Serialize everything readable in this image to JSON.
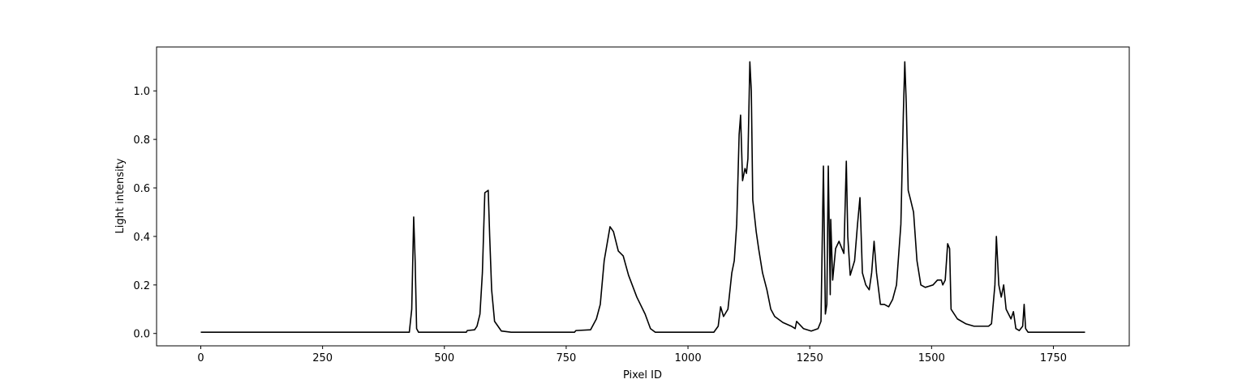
{
  "chart_data": {
    "type": "line",
    "x_label": "Pixel ID",
    "y_label": "Light intensity",
    "xlim": [
      -90.75,
      1905.75
    ],
    "ylim": [
      -0.051,
      1.181
    ],
    "xticks": [
      0,
      250,
      500,
      750,
      1000,
      1250,
      1500,
      1750
    ],
    "yticks": [
      {
        "value": 0,
        "label": "0.0"
      },
      {
        "value": 0.2,
        "label": "0.2"
      },
      {
        "value": 0.4,
        "label": "0.4"
      },
      {
        "value": 0.6,
        "label": "0.6"
      },
      {
        "value": 0.8,
        "label": "0.8"
      },
      {
        "value": 1.0,
        "label": "1.0"
      }
    ],
    "series": [
      {
        "color": "#000000",
        "x": [
          0,
          428,
          433,
          437,
          440,
          443,
          447,
          545,
          547,
          562,
          567,
          573,
          578,
          583,
          590,
          593,
          597,
          603,
          610,
          617,
          637,
          767,
          770,
          800,
          812,
          820,
          828,
          840,
          847,
          857,
          867,
          878,
          895,
          912,
          923,
          933,
          1053,
          1062,
          1067,
          1073,
          1082,
          1090,
          1095,
          1100,
          1105,
          1108,
          1112,
          1117,
          1120,
          1123,
          1127,
          1130,
          1133,
          1140,
          1145,
          1153,
          1162,
          1170,
          1178,
          1195,
          1212,
          1220,
          1223,
          1237,
          1253,
          1267,
          1273,
          1278,
          1282,
          1285,
          1288,
          1292,
          1293,
          1297,
          1303,
          1310,
          1320,
          1325,
          1328,
          1333,
          1342,
          1348,
          1353,
          1358,
          1365,
          1372,
          1377,
          1382,
          1387,
          1395,
          1403,
          1412,
          1420,
          1428,
          1437,
          1442,
          1445,
          1448,
          1452,
          1457,
          1463,
          1470,
          1478,
          1487,
          1503,
          1512,
          1520,
          1523,
          1528,
          1533,
          1537,
          1540,
          1553,
          1570,
          1587,
          1617,
          1623,
          1630,
          1633,
          1638,
          1643,
          1648,
          1653,
          1663,
          1668,
          1673,
          1680,
          1687,
          1690,
          1693,
          1698,
          1815
        ],
        "values": [
          0.005,
          0.005,
          0.1,
          0.48,
          0.3,
          0.02,
          0.005,
          0.005,
          0.012,
          0.015,
          0.03,
          0.08,
          0.25,
          0.58,
          0.59,
          0.4,
          0.18,
          0.05,
          0.03,
          0.01,
          0.005,
          0.005,
          0.012,
          0.015,
          0.06,
          0.12,
          0.3,
          0.44,
          0.42,
          0.34,
          0.32,
          0.24,
          0.15,
          0.08,
          0.02,
          0.005,
          0.005,
          0.03,
          0.11,
          0.07,
          0.1,
          0.25,
          0.3,
          0.45,
          0.82,
          0.9,
          0.63,
          0.68,
          0.66,
          0.72,
          1.12,
          1.0,
          0.55,
          0.42,
          0.35,
          0.25,
          0.18,
          0.1,
          0.07,
          0.045,
          0.03,
          0.02,
          0.05,
          0.02,
          0.01,
          0.02,
          0.05,
          0.69,
          0.08,
          0.12,
          0.69,
          0.16,
          0.47,
          0.22,
          0.35,
          0.38,
          0.33,
          0.71,
          0.4,
          0.24,
          0.3,
          0.45,
          0.56,
          0.25,
          0.2,
          0.18,
          0.25,
          0.38,
          0.25,
          0.12,
          0.12,
          0.11,
          0.14,
          0.2,
          0.45,
          0.9,
          1.12,
          0.95,
          0.59,
          0.55,
          0.5,
          0.3,
          0.2,
          0.19,
          0.2,
          0.22,
          0.22,
          0.2,
          0.22,
          0.37,
          0.35,
          0.1,
          0.06,
          0.04,
          0.03,
          0.03,
          0.04,
          0.2,
          0.4,
          0.2,
          0.15,
          0.2,
          0.1,
          0.06,
          0.09,
          0.02,
          0.012,
          0.03,
          0.12,
          0.02,
          0.005,
          0.005
        ]
      }
    ]
  }
}
